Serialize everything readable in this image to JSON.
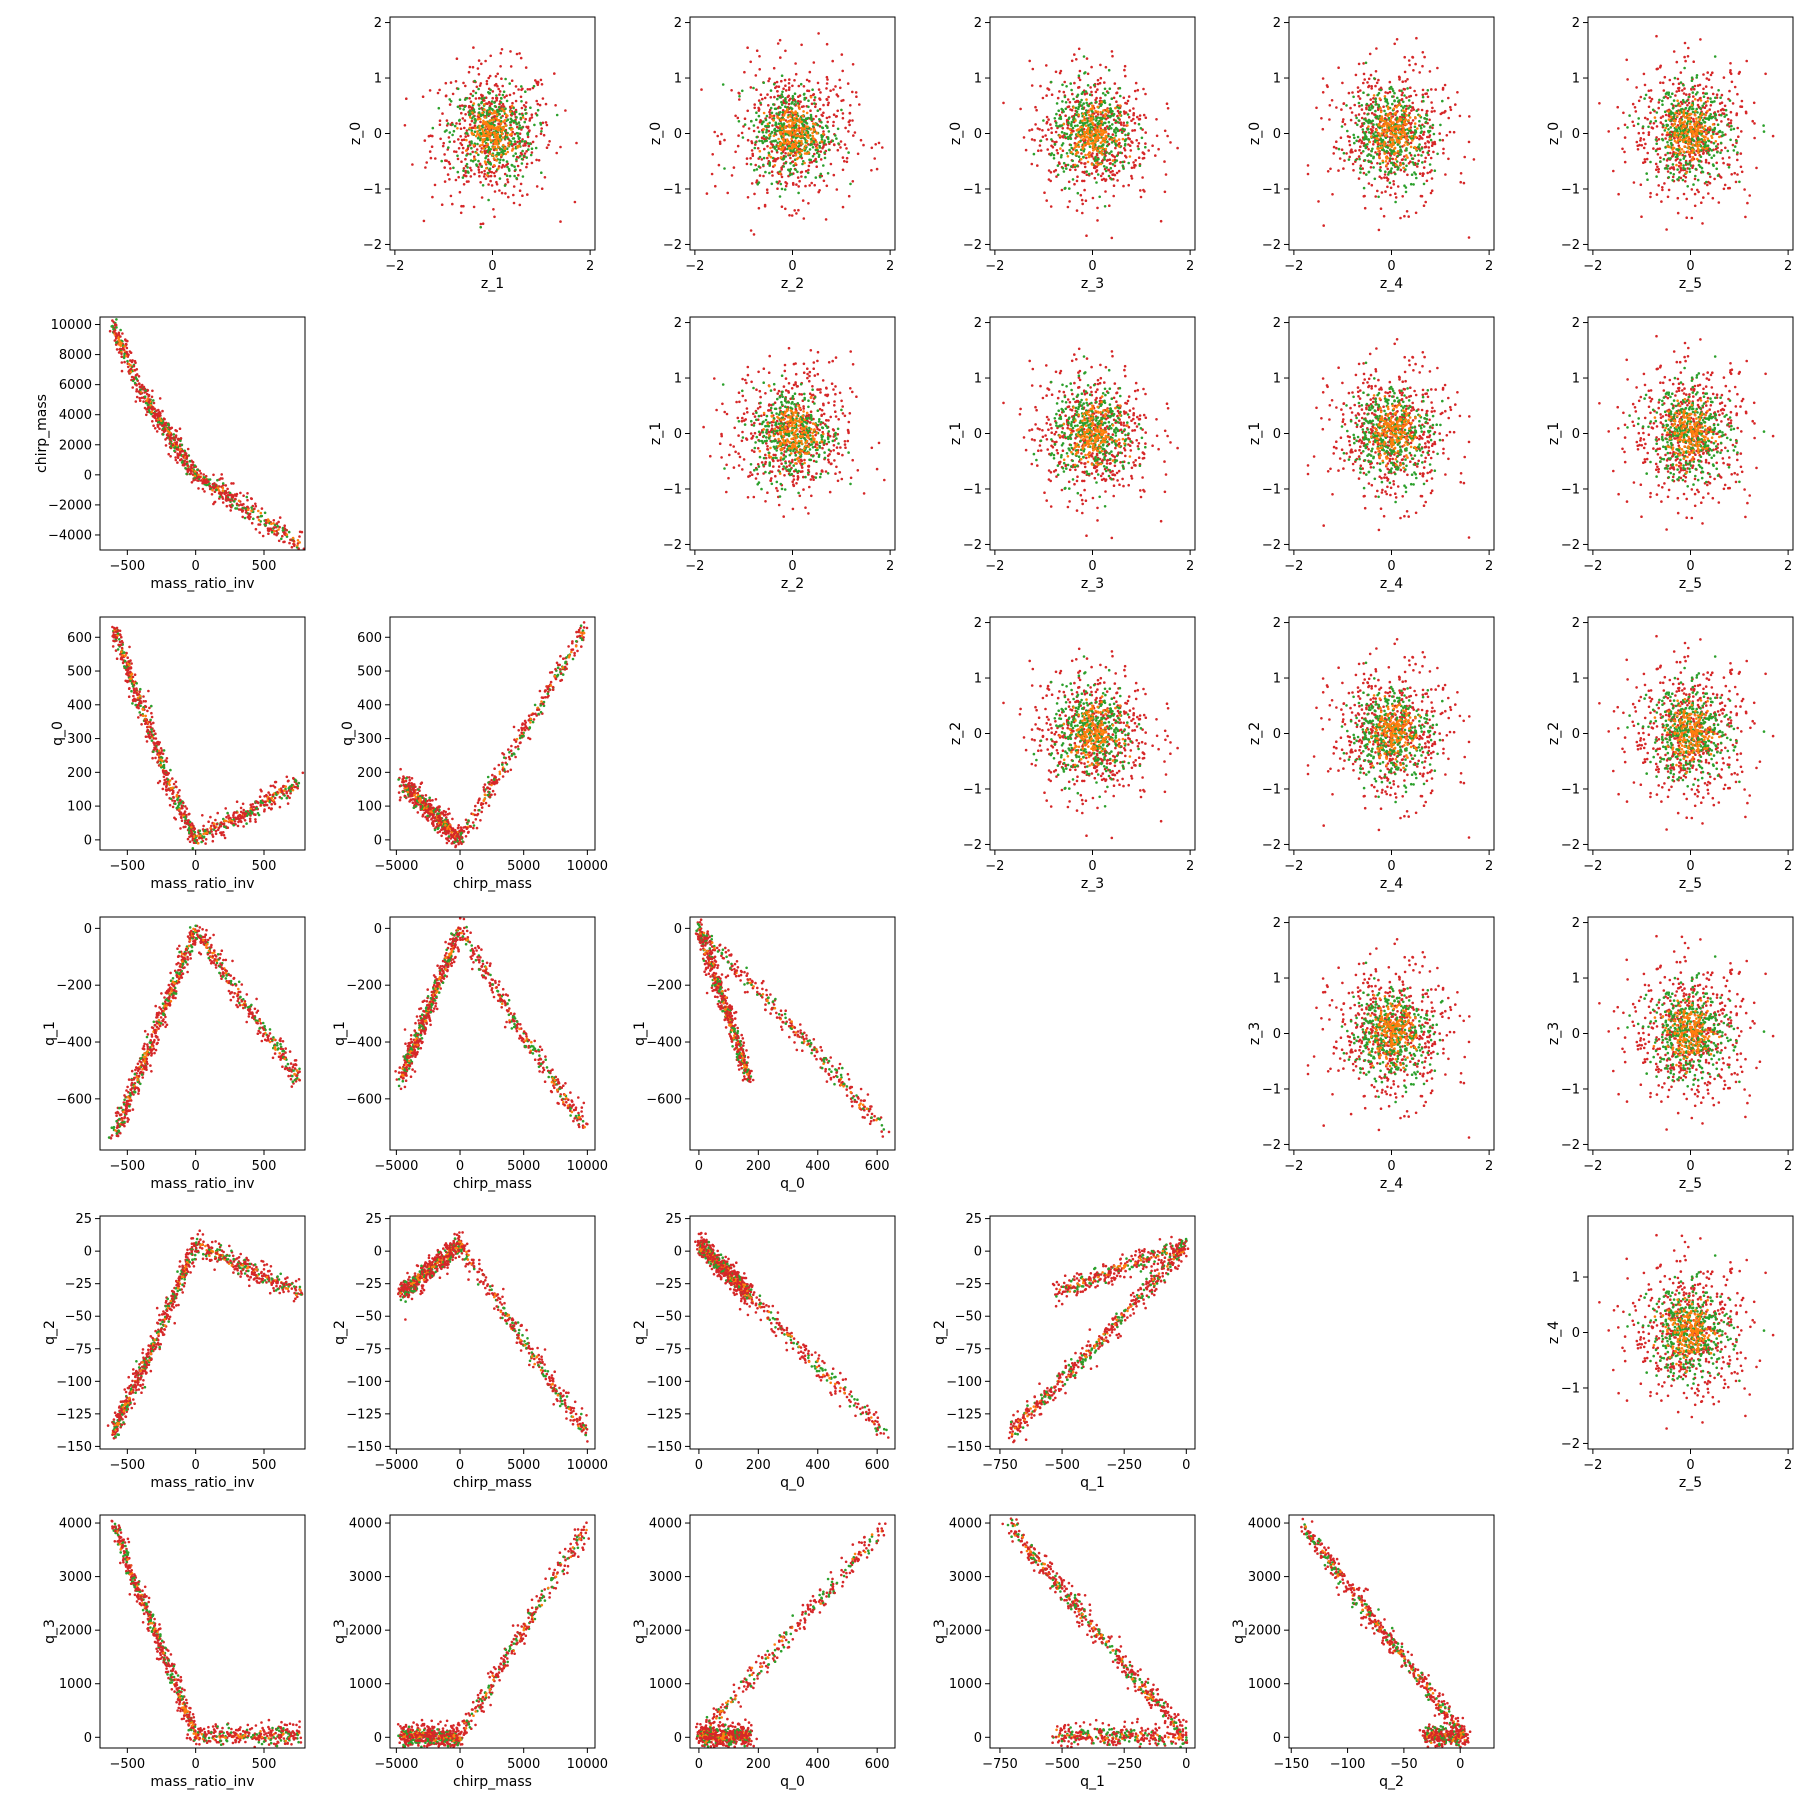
{
  "chart_data": {
    "type": "scatter",
    "layout": "pair-plot grid, 6 rows x 6 columns",
    "marker_size": "small dots",
    "series_colors": [
      "#d62728",
      "#2ca02c",
      "#ff7f0e"
    ],
    "series": [
      {
        "color": "#d62728",
        "role": "widest spread"
      },
      {
        "color": "#2ca02c",
        "role": "medium spread"
      },
      {
        "color": "#ff7f0e",
        "role": "core"
      }
    ],
    "panels": [
      {
        "row": 0,
        "col": 1,
        "xlabel": "z_1",
        "ylabel": "z_0",
        "xlim": [
          -2.1,
          2.1
        ],
        "ylim": [
          -2.1,
          2.1
        ],
        "xticks": [
          -2,
          0,
          2
        ],
        "yticks": [
          -2,
          -1,
          0,
          1,
          2
        ],
        "pattern": "blob"
      },
      {
        "row": 0,
        "col": 2,
        "xlabel": "z_2",
        "ylabel": "z_0",
        "xlim": [
          -2.1,
          2.1
        ],
        "ylim": [
          -2.1,
          2.1
        ],
        "xticks": [
          -2,
          0,
          2
        ],
        "yticks": [
          -2,
          -1,
          0,
          1,
          2
        ],
        "pattern": "blob"
      },
      {
        "row": 0,
        "col": 3,
        "xlabel": "z_3",
        "ylabel": "z_0",
        "xlim": [
          -2.1,
          2.1
        ],
        "ylim": [
          -2.1,
          2.1
        ],
        "xticks": [
          -2,
          0,
          2
        ],
        "yticks": [
          -2,
          -1,
          0,
          1,
          2
        ],
        "pattern": "blob"
      },
      {
        "row": 0,
        "col": 4,
        "xlabel": "z_4",
        "ylabel": "z_0",
        "xlim": [
          -2.1,
          2.1
        ],
        "ylim": [
          -2.1,
          2.1
        ],
        "xticks": [
          -2,
          0,
          2
        ],
        "yticks": [
          -2,
          -1,
          0,
          1,
          2
        ],
        "pattern": "blob"
      },
      {
        "row": 0,
        "col": 5,
        "xlabel": "z_5",
        "ylabel": "z_0",
        "xlim": [
          -2.1,
          2.1
        ],
        "ylim": [
          -2.1,
          2.1
        ],
        "xticks": [
          -2,
          0,
          2
        ],
        "yticks": [
          -2,
          -1,
          0,
          1,
          2
        ],
        "pattern": "blob"
      },
      {
        "row": 1,
        "col": 0,
        "xlabel": "mass_ratio_inv",
        "ylabel": "chirp_mass",
        "xlim": [
          -700,
          800
        ],
        "ylim": [
          -5000,
          10500
        ],
        "xticks": [
          -500,
          0,
          500
        ],
        "yticks": [
          -4000,
          -2000,
          0,
          2000,
          4000,
          6000,
          8000,
          10000
        ],
        "pattern": "vshape",
        "neg": [
          [
            -600,
            9800
          ],
          [
            -400,
            5600
          ],
          [
            -200,
            2700
          ],
          [
            0,
            0
          ]
        ],
        "pos": [
          [
            0,
            0
          ],
          [
            300,
            -1800
          ],
          [
            760,
            -4600
          ]
        ]
      },
      {
        "row": 1,
        "col": 2,
        "xlabel": "z_2",
        "ylabel": "z_1",
        "xlim": [
          -2.1,
          2.1
        ],
        "ylim": [
          -2.1,
          2.1
        ],
        "xticks": [
          -2,
          0,
          2
        ],
        "yticks": [
          -2,
          -1,
          0,
          1,
          2
        ],
        "pattern": "blob"
      },
      {
        "row": 1,
        "col": 3,
        "xlabel": "z_3",
        "ylabel": "z_1",
        "xlim": [
          -2.1,
          2.1
        ],
        "ylim": [
          -2.1,
          2.1
        ],
        "xticks": [
          -2,
          0,
          2
        ],
        "yticks": [
          -2,
          -1,
          0,
          1,
          2
        ],
        "pattern": "blob"
      },
      {
        "row": 1,
        "col": 4,
        "xlabel": "z_4",
        "ylabel": "z_1",
        "xlim": [
          -2.1,
          2.1
        ],
        "ylim": [
          -2.1,
          2.1
        ],
        "xticks": [
          -2,
          0,
          2
        ],
        "yticks": [
          -2,
          -1,
          0,
          1,
          2
        ],
        "pattern": "blob"
      },
      {
        "row": 1,
        "col": 5,
        "xlabel": "z_5",
        "ylabel": "z_1",
        "xlim": [
          -2.1,
          2.1
        ],
        "ylim": [
          -2.1,
          2.1
        ],
        "xticks": [
          -2,
          0,
          2
        ],
        "yticks": [
          -2,
          -1,
          0,
          1,
          2
        ],
        "pattern": "blob"
      },
      {
        "row": 2,
        "col": 0,
        "xlabel": "mass_ratio_inv",
        "ylabel": "q_0",
        "xlim": [
          -700,
          800
        ],
        "ylim": [
          -30,
          660
        ],
        "xticks": [
          -500,
          0,
          500
        ],
        "yticks": [
          0,
          100,
          200,
          300,
          400,
          500,
          600
        ],
        "pattern": "vshape",
        "neg": [
          [
            -600,
            630
          ],
          [
            -400,
            400
          ],
          [
            -200,
            170
          ],
          [
            0,
            0
          ]
        ],
        "pos": [
          [
            0,
            0
          ],
          [
            760,
            170
          ]
        ]
      },
      {
        "row": 2,
        "col": 1,
        "xlabel": "chirp_mass",
        "ylabel": "q_0",
        "xlim": [
          -5500,
          10600
        ],
        "ylim": [
          -30,
          660
        ],
        "xticks": [
          -5000,
          0,
          5000,
          10000
        ],
        "yticks": [
          0,
          100,
          200,
          300,
          400,
          500,
          600
        ],
        "pattern": "vshape",
        "neg": [
          [
            -4600,
            170
          ],
          [
            0,
            0
          ]
        ],
        "pos": [
          [
            0,
            0
          ],
          [
            9900,
            630
          ]
        ]
      },
      {
        "row": 2,
        "col": 3,
        "xlabel": "z_3",
        "ylabel": "z_2",
        "xlim": [
          -2.1,
          2.1
        ],
        "ylim": [
          -2.1,
          2.1
        ],
        "xticks": [
          -2,
          0,
          2
        ],
        "yticks": [
          -2,
          -1,
          0,
          1,
          2
        ],
        "pattern": "blob"
      },
      {
        "row": 2,
        "col": 4,
        "xlabel": "z_4",
        "ylabel": "z_2",
        "xlim": [
          -2.1,
          2.1
        ],
        "ylim": [
          -2.1,
          2.1
        ],
        "xticks": [
          -2,
          0,
          2
        ],
        "yticks": [
          -2,
          -1,
          0,
          1,
          2
        ],
        "pattern": "blob"
      },
      {
        "row": 2,
        "col": 5,
        "xlabel": "z_5",
        "ylabel": "z_2",
        "xlim": [
          -2.1,
          2.1
        ],
        "ylim": [
          -2.1,
          2.1
        ],
        "xticks": [
          -2,
          0,
          2
        ],
        "yticks": [
          -2,
          -1,
          0,
          1,
          2
        ],
        "pattern": "blob"
      },
      {
        "row": 3,
        "col": 0,
        "xlabel": "mass_ratio_inv",
        "ylabel": "q_1",
        "xlim": [
          -700,
          800
        ],
        "ylim": [
          -780,
          40
        ],
        "xticks": [
          -500,
          0,
          500
        ],
        "yticks": [
          -600,
          -400,
          -200,
          0
        ],
        "pattern": "vshape",
        "neg": [
          [
            -600,
            -740
          ],
          [
            -300,
            -370
          ],
          [
            0,
            0
          ]
        ],
        "pos": [
          [
            0,
            0
          ],
          [
            350,
            -260
          ],
          [
            760,
            -530
          ]
        ]
      },
      {
        "row": 3,
        "col": 1,
        "xlabel": "chirp_mass",
        "ylabel": "q_1",
        "xlim": [
          -5500,
          10600
        ],
        "ylim": [
          -780,
          40
        ],
        "xticks": [
          -5000,
          0,
          5000,
          10000
        ],
        "yticks": [
          -600,
          -400,
          -200,
          0
        ],
        "pattern": "vshape",
        "neg": [
          [
            -4600,
            -530
          ],
          [
            0,
            0
          ]
        ],
        "pos": [
          [
            0,
            0
          ],
          [
            5000,
            -380
          ],
          [
            9900,
            -710
          ]
        ]
      },
      {
        "row": 3,
        "col": 2,
        "xlabel": "q_0",
        "ylabel": "q_1",
        "xlim": [
          -30,
          660
        ],
        "ylim": [
          -780,
          40
        ],
        "xticks": [
          0,
          200,
          400,
          600
        ],
        "yticks": [
          -600,
          -400,
          -200,
          0
        ],
        "pattern": "vshape",
        "neg": [
          [
            0,
            0
          ],
          [
            170,
            -530
          ]
        ],
        "pos": [
          [
            0,
            0
          ],
          [
            300,
            -330
          ],
          [
            630,
            -710
          ]
        ]
      },
      {
        "row": 3,
        "col": 4,
        "xlabel": "z_4",
        "ylabel": "z_3",
        "xlim": [
          -2.1,
          2.1
        ],
        "ylim": [
          -2.1,
          2.1
        ],
        "xticks": [
          -2,
          0,
          2
        ],
        "yticks": [
          -2,
          -1,
          0,
          1,
          2
        ],
        "pattern": "blob"
      },
      {
        "row": 3,
        "col": 5,
        "xlabel": "z_5",
        "ylabel": "z_3",
        "xlim": [
          -2.1,
          2.1
        ],
        "ylim": [
          -2.1,
          2.1
        ],
        "xticks": [
          -2,
          0,
          2
        ],
        "yticks": [
          -2,
          -1,
          0,
          1,
          2
        ],
        "pattern": "blob"
      },
      {
        "row": 4,
        "col": 0,
        "xlabel": "mass_ratio_inv",
        "ylabel": "q_2",
        "xlim": [
          -700,
          800
        ],
        "ylim": [
          -152,
          27
        ],
        "xticks": [
          -500,
          0,
          500
        ],
        "yticks": [
          -150,
          -125,
          -100,
          -75,
          -50,
          -25,
          0,
          25
        ],
        "pattern": "vshape",
        "neg": [
          [
            -600,
            -140
          ],
          [
            -300,
            -70
          ],
          [
            0,
            5
          ]
        ],
        "pos": [
          [
            0,
            5
          ],
          [
            760,
            -32
          ]
        ]
      },
      {
        "row": 4,
        "col": 1,
        "xlabel": "chirp_mass",
        "ylabel": "q_2",
        "xlim": [
          -5500,
          10600
        ],
        "ylim": [
          -152,
          27
        ],
        "xticks": [
          -5000,
          0,
          5000,
          10000
        ],
        "yticks": [
          -150,
          -125,
          -100,
          -75,
          -50,
          -25,
          0,
          25
        ],
        "pattern": "vshape",
        "neg": [
          [
            -4600,
            -32
          ],
          [
            0,
            5
          ]
        ],
        "pos": [
          [
            0,
            5
          ],
          [
            5000,
            -70
          ],
          [
            9900,
            -140
          ]
        ]
      },
      {
        "row": 4,
        "col": 2,
        "xlabel": "q_0",
        "ylabel": "q_2",
        "xlim": [
          -30,
          660
        ],
        "ylim": [
          -152,
          27
        ],
        "xticks": [
          0,
          200,
          400,
          600
        ],
        "yticks": [
          -150,
          -125,
          -100,
          -75,
          -50,
          -25,
          0,
          25
        ],
        "pattern": "vshape",
        "neg": [
          [
            0,
            5
          ],
          [
            170,
            -32
          ]
        ],
        "pos": [
          [
            0,
            5
          ],
          [
            300,
            -65
          ],
          [
            630,
            -140
          ]
        ]
      },
      {
        "row": 4,
        "col": 3,
        "xlabel": "q_1",
        "ylabel": "q_2",
        "xlim": [
          -790,
          35
        ],
        "ylim": [
          -152,
          27
        ],
        "xticks": [
          -750,
          -500,
          -250,
          0
        ],
        "yticks": [
          -150,
          -125,
          -100,
          -75,
          -50,
          -25,
          0,
          25
        ],
        "pattern": "vshape",
        "neg": [
          [
            -710,
            -140
          ],
          [
            -350,
            -70
          ],
          [
            0,
            5
          ]
        ],
        "pos": [
          [
            -530,
            -32
          ],
          [
            0,
            5
          ]
        ]
      },
      {
        "row": 4,
        "col": 5,
        "xlabel": "z_5",
        "ylabel": "z_4",
        "xlim": [
          -2.1,
          2.1
        ],
        "ylim": [
          -2.1,
          2.1
        ],
        "xticks": [
          -2,
          0,
          2
        ],
        "yticks": [
          -2,
          -1,
          0,
          1
        ],
        "pattern": "blob"
      },
      {
        "row": 5,
        "col": 0,
        "xlabel": "mass_ratio_inv",
        "ylabel": "q_3",
        "xlim": [
          -700,
          800
        ],
        "ylim": [
          -200,
          4150
        ],
        "xticks": [
          -500,
          0,
          500
        ],
        "yticks": [
          0,
          1000,
          2000,
          3000,
          4000
        ],
        "pattern": "vshape",
        "neg": [
          [
            -600,
            3950
          ],
          [
            -300,
            2000
          ],
          [
            0,
            0
          ]
        ],
        "pos": [
          [
            0,
            20
          ],
          [
            760,
            40
          ]
        ]
      },
      {
        "row": 5,
        "col": 1,
        "xlabel": "chirp_mass",
        "ylabel": "q_3",
        "xlim": [
          -5500,
          10600
        ],
        "ylim": [
          -200,
          4150
        ],
        "xticks": [
          -5000,
          0,
          5000,
          10000
        ],
        "yticks": [
          0,
          1000,
          2000,
          3000,
          4000
        ],
        "pattern": "vshape",
        "neg": [
          [
            -4600,
            40
          ],
          [
            0,
            0
          ]
        ],
        "pos": [
          [
            0,
            0
          ],
          [
            5000,
            2000
          ],
          [
            9900,
            3950
          ]
        ]
      },
      {
        "row": 5,
        "col": 2,
        "xlabel": "q_0",
        "ylabel": "q_3",
        "xlim": [
          -30,
          660
        ],
        "ylim": [
          -200,
          4150
        ],
        "xticks": [
          0,
          200,
          400,
          600
        ],
        "yticks": [
          0,
          1000,
          2000,
          3000,
          4000
        ],
        "pattern": "vshape",
        "neg": [
          [
            0,
            0
          ],
          [
            170,
            40
          ]
        ],
        "pos": [
          [
            0,
            0
          ],
          [
            300,
            1900
          ],
          [
            630,
            3950
          ]
        ]
      },
      {
        "row": 5,
        "col": 3,
        "xlabel": "q_1",
        "ylabel": "q_3",
        "xlim": [
          -790,
          35
        ],
        "ylim": [
          -200,
          4150
        ],
        "xticks": [
          -750,
          -500,
          -250,
          0
        ],
        "yticks": [
          0,
          1000,
          2000,
          3000,
          4000
        ],
        "pattern": "vshape",
        "neg": [
          [
            -710,
            3950
          ],
          [
            -350,
            1900
          ],
          [
            0,
            0
          ]
        ],
        "pos": [
          [
            -530,
            40
          ],
          [
            0,
            0
          ]
        ]
      },
      {
        "row": 5,
        "col": 4,
        "xlabel": "q_2",
        "ylabel": "q_3",
        "xlim": [
          -152,
          30
        ],
        "ylim": [
          -200,
          4150
        ],
        "xticks": [
          -150,
          -100,
          -50,
          0
        ],
        "yticks": [
          0,
          1000,
          2000,
          3000,
          4000
        ],
        "pattern": "vshape",
        "neg": [
          [
            -140,
            3950
          ],
          [
            -70,
            2000
          ],
          [
            5,
            0
          ]
        ],
        "pos": [
          [
            -32,
            40
          ],
          [
            5,
            0
          ]
        ]
      }
    ]
  }
}
